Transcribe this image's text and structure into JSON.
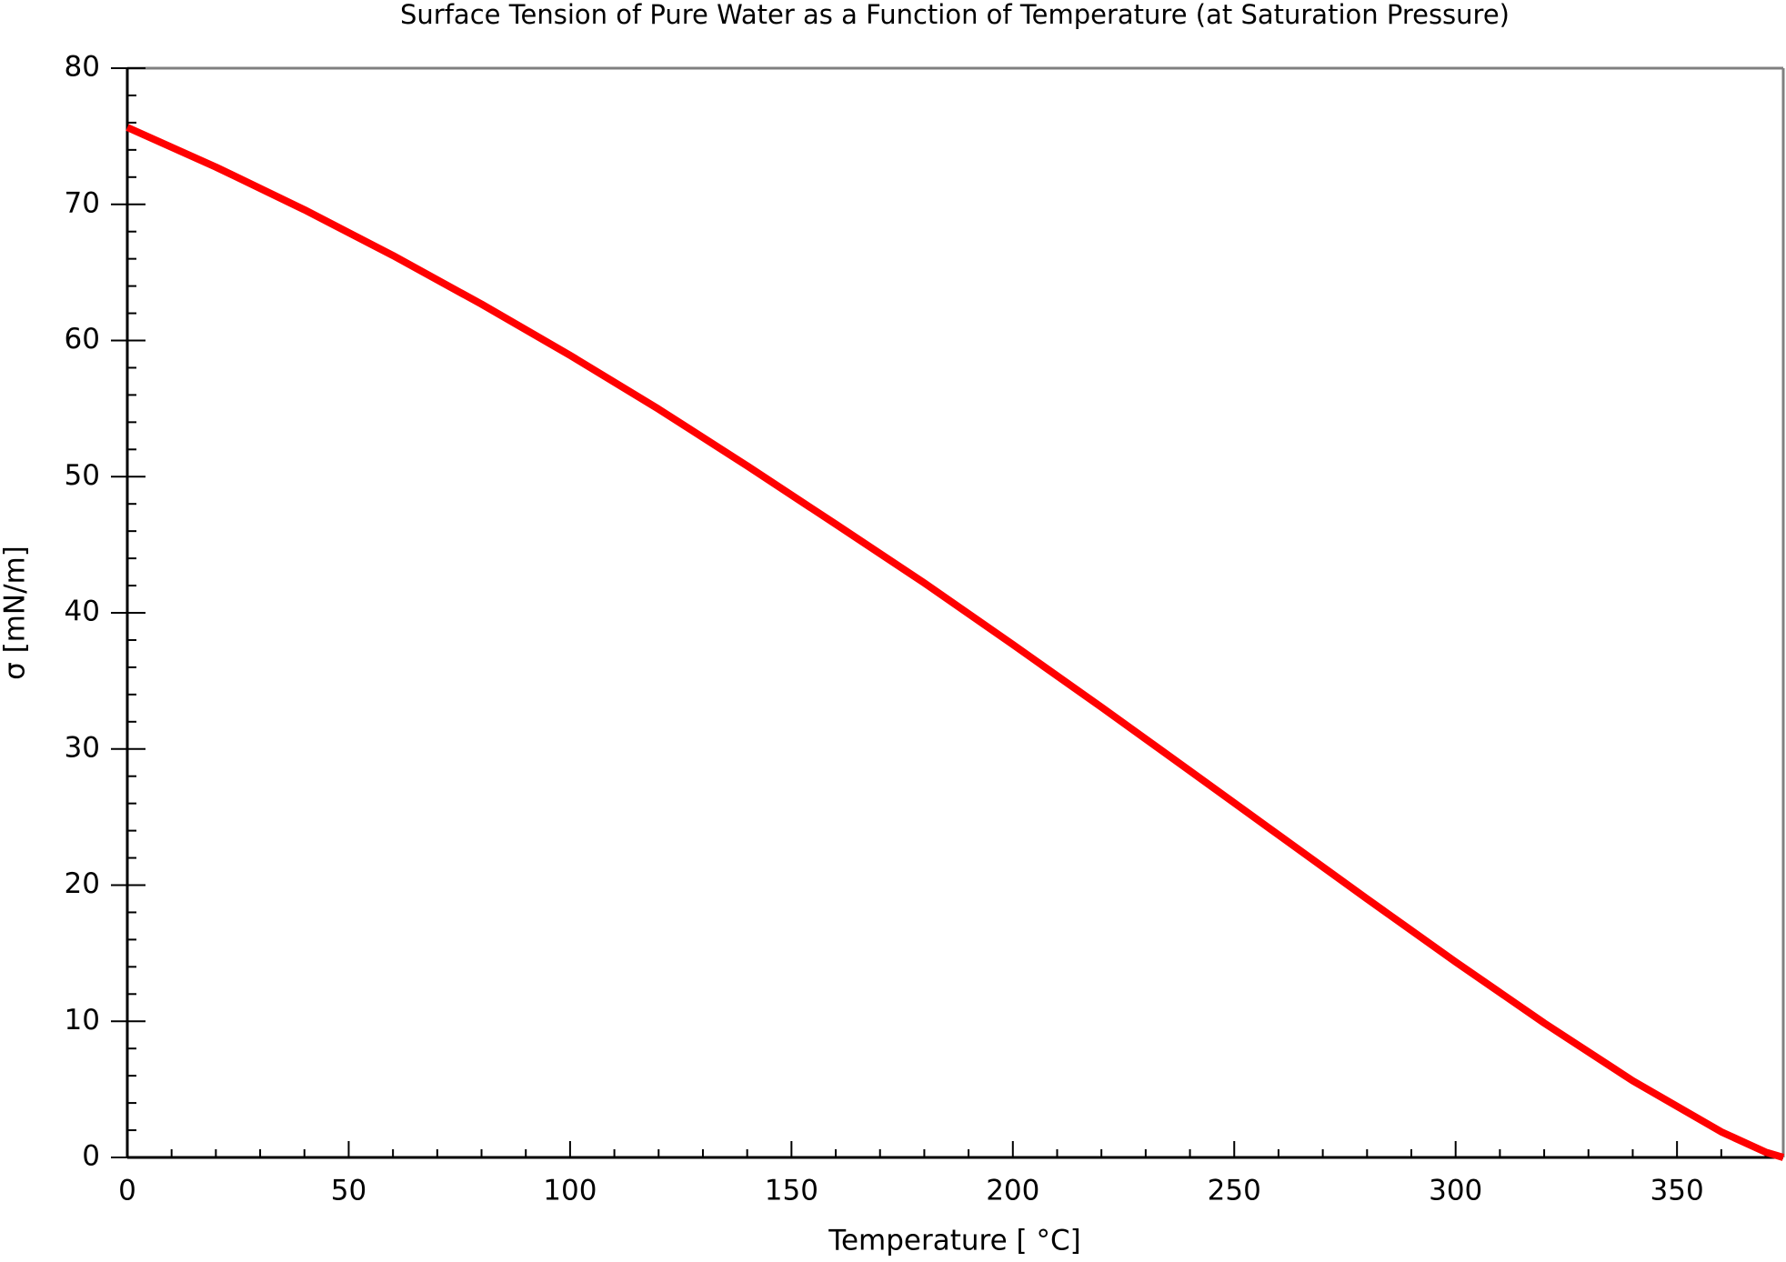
{
  "chart_data": {
    "type": "line",
    "title": "Surface Tension of Pure Water as a Function of Temperature (at Saturation Pressure)",
    "x_label": "Temperature [ °C]",
    "y_label": "σ [mN/m]",
    "x": [
      0,
      20,
      40,
      60,
      80,
      100,
      120,
      140,
      160,
      180,
      200,
      220,
      240,
      260,
      280,
      300,
      320,
      340,
      360,
      370,
      374
    ],
    "series": [
      {
        "name": "σ",
        "color": "#ff0000",
        "values": [
          75.65,
          72.74,
          69.6,
          66.24,
          62.67,
          58.91,
          54.96,
          50.79,
          46.51,
          42.19,
          37.67,
          33.07,
          28.39,
          23.69,
          18.99,
          14.36,
          9.87,
          5.63,
          1.88,
          0.39,
          0
        ]
      }
    ],
    "xlim": [
      0,
      374
    ],
    "ylim": [
      0,
      80
    ],
    "xticks": [
      0,
      50,
      100,
      150,
      200,
      250,
      300,
      350
    ],
    "yticks": [
      0,
      10,
      20,
      30,
      40,
      50,
      60,
      70,
      80
    ],
    "grid": false
  }
}
